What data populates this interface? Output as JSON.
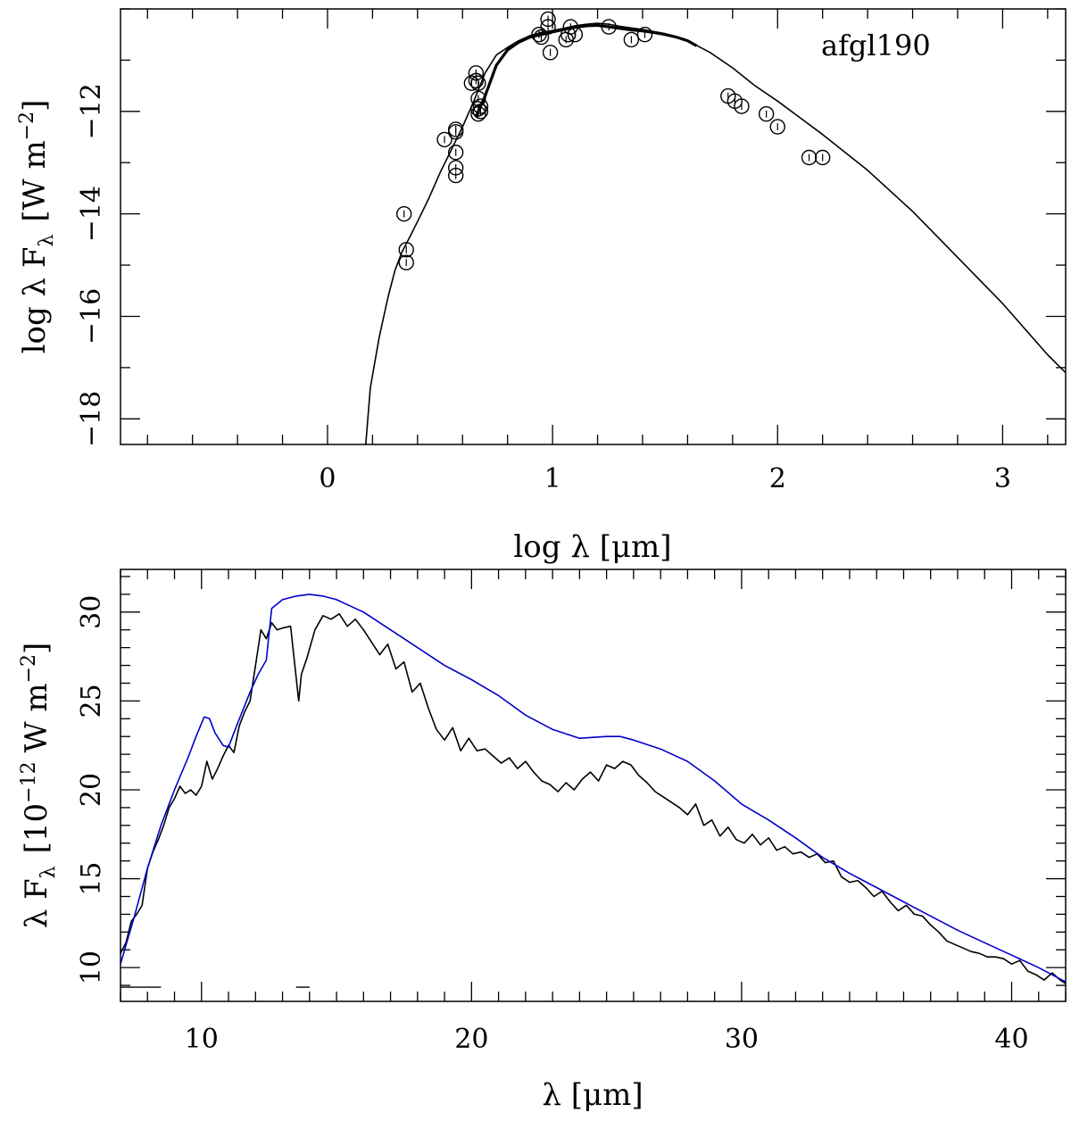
{
  "chart_data": [
    {
      "type": "scatter",
      "panel": "top",
      "title": "",
      "annotation": "afgl190",
      "xlabel": "log λ [μm]",
      "ylabel": "log λ F",
      "ylabel_sub": "λ",
      "ylabel_units": "[W m",
      "ylabel_sup": "−2",
      "ylabel_close": "]",
      "xlim": [
        -0.92,
        3.28
      ],
      "ylim": [
        -18.5,
        -10.0
      ],
      "x_ticks": [
        {
          "value": 0,
          "label": "0"
        },
        {
          "value": 1,
          "label": "1"
        },
        {
          "value": 2,
          "label": "2"
        },
        {
          "value": 3,
          "label": "3"
        }
      ],
      "x_minor_step": 0.2,
      "y_ticks": [
        {
          "value": -12,
          "label": "−12"
        },
        {
          "value": -14,
          "label": "−14"
        },
        {
          "value": -16,
          "label": "−16"
        },
        {
          "value": -18,
          "label": "−18"
        }
      ],
      "y_minor_step": 1,
      "series": [
        {
          "name": "model",
          "kind": "line",
          "color": "#000000",
          "x": [
            0.17,
            0.19,
            0.21,
            0.23,
            0.25,
            0.27,
            0.3,
            0.33,
            0.36,
            0.4,
            0.45,
            0.5,
            0.55,
            0.6,
            0.65,
            0.7,
            0.75,
            0.8,
            0.85,
            0.9,
            0.95,
            1.0,
            1.05,
            1.1,
            1.15,
            1.2,
            1.25,
            1.3,
            1.4,
            1.5,
            1.6,
            1.7,
            1.8,
            1.9,
            2.0,
            2.2,
            2.4,
            2.6,
            2.8,
            3.0,
            3.2,
            3.28
          ],
          "y": [
            -18.5,
            -17.4,
            -16.9,
            -16.4,
            -16.0,
            -15.6,
            -15.1,
            -14.75,
            -14.5,
            -14.15,
            -13.7,
            -13.2,
            -12.75,
            -12.3,
            -11.8,
            -11.25,
            -10.9,
            -10.75,
            -10.62,
            -10.52,
            -10.46,
            -10.42,
            -10.38,
            -10.33,
            -10.3,
            -10.28,
            -10.3,
            -10.34,
            -10.4,
            -10.48,
            -10.62,
            -10.85,
            -11.15,
            -11.5,
            -11.8,
            -12.45,
            -13.15,
            -13.95,
            -14.85,
            -15.75,
            -16.75,
            -17.1
          ]
        },
        {
          "name": "observed spectrum",
          "kind": "line-thick",
          "color": "#000000",
          "x": [
            0.66,
            0.7,
            0.75,
            0.8,
            0.85,
            0.9,
            0.95,
            1.0,
            1.05,
            1.1,
            1.15,
            1.2,
            1.25,
            1.3,
            1.35,
            1.4,
            1.45,
            1.5,
            1.55,
            1.6,
            1.64
          ],
          "y": [
            -12.1,
            -11.7,
            -11.1,
            -10.8,
            -10.65,
            -10.55,
            -10.5,
            -10.45,
            -10.4,
            -10.36,
            -10.33,
            -10.32,
            -10.35,
            -10.38,
            -10.41,
            -10.43,
            -10.46,
            -10.5,
            -10.55,
            -10.62,
            -10.72
          ]
        },
        {
          "name": "photometry",
          "kind": "markers",
          "color": "#000000",
          "x": [
            0.34,
            0.35,
            0.35,
            0.52,
            0.57,
            0.57,
            0.57,
            0.57,
            0.57,
            0.64,
            0.66,
            0.66,
            0.67,
            0.67,
            0.68,
            0.67,
            0.68,
            0.67,
            0.94,
            0.95,
            0.98,
            0.98,
            0.99,
            1.07,
            1.06,
            1.08,
            1.1,
            1.25,
            1.35,
            1.41,
            1.78,
            1.81,
            1.84,
            1.95,
            2.0,
            2.14,
            2.2
          ],
          "y": [
            -14.0,
            -14.7,
            -14.95,
            -12.55,
            -12.35,
            -12.4,
            -12.8,
            -13.1,
            -13.25,
            -11.45,
            -11.4,
            -11.25,
            -11.45,
            -11.75,
            -12.0,
            -12.05,
            -11.9,
            -11.95,
            -10.5,
            -10.55,
            -10.2,
            -10.35,
            -10.85,
            -10.5,
            -10.6,
            -10.35,
            -10.5,
            -10.35,
            -10.6,
            -10.5,
            -11.7,
            -11.8,
            -11.9,
            -12.05,
            -12.3,
            -12.9,
            -12.9
          ]
        }
      ]
    },
    {
      "type": "line",
      "panel": "bottom",
      "title": "",
      "xlabel": "λ [μm]",
      "ylabel": "λ F",
      "ylabel_sub": "λ",
      "ylabel_units": "[10",
      "ylabel_sup": "−12",
      "ylabel_rest": "W m",
      "ylabel_sup2": "−2",
      "ylabel_close": "]",
      "xlim": [
        7,
        42
      ],
      "ylim": [
        8.1,
        32.4
      ],
      "x_ticks": [
        {
          "value": 10,
          "label": "10"
        },
        {
          "value": 20,
          "label": "20"
        },
        {
          "value": 30,
          "label": "30"
        },
        {
          "value": 40,
          "label": "40"
        }
      ],
      "x_minor_step": 1,
      "y_ticks": [
        {
          "value": 10,
          "label": "10"
        },
        {
          "value": 15,
          "label": "15"
        },
        {
          "value": 20,
          "label": "20"
        },
        {
          "value": 25,
          "label": "25"
        },
        {
          "value": 30,
          "label": "30"
        }
      ],
      "y_minor_step": 1,
      "series": [
        {
          "name": "observed",
          "color": "#000000",
          "x": [
            7.0,
            7.2,
            7.4,
            7.6,
            7.8,
            8.0,
            8.2,
            8.4,
            8.6,
            8.8,
            9.0,
            9.2,
            9.4,
            9.6,
            9.8,
            10.0,
            10.2,
            10.4,
            10.6,
            10.8,
            11.0,
            11.2,
            11.4,
            11.6,
            11.8,
            12.0,
            12.2,
            12.4,
            12.6,
            12.8,
            13.0,
            13.3,
            13.6,
            13.7,
            13.9,
            14.2,
            14.5,
            14.8,
            15.1,
            15.4,
            15.7,
            16.0,
            16.3,
            16.6,
            16.9,
            17.2,
            17.5,
            17.8,
            18.1,
            18.4,
            18.7,
            19.0,
            19.3,
            19.6,
            19.9,
            20.2,
            20.5,
            20.8,
            21.1,
            21.4,
            21.7,
            22.0,
            22.3,
            22.6,
            22.9,
            23.2,
            23.5,
            23.8,
            24.1,
            24.4,
            24.7,
            25.0,
            25.3,
            25.6,
            25.9,
            26.2,
            26.5,
            26.8,
            27.1,
            27.4,
            27.7,
            28.0,
            28.3,
            28.6,
            28.9,
            29.2,
            29.5,
            29.8,
            30.1,
            30.4,
            30.7,
            31.0,
            31.3,
            31.6,
            31.9,
            32.2,
            32.5,
            32.8,
            33.1,
            33.4,
            33.7,
            34.0,
            34.3,
            34.6,
            34.9,
            35.2,
            35.5,
            35.8,
            36.1,
            36.4,
            36.7,
            37.0,
            37.3,
            37.6,
            37.9,
            38.2,
            38.5,
            38.8,
            39.1,
            39.4,
            39.7,
            40.0,
            40.3,
            40.6,
            40.9,
            41.2,
            41.5,
            41.8,
            42.0
          ],
          "y": [
            10.8,
            11.4,
            12.6,
            13.0,
            13.5,
            15.6,
            16.5,
            17.2,
            18.0,
            19.0,
            19.5,
            20.2,
            19.8,
            20.0,
            19.7,
            20.2,
            21.6,
            20.6,
            21.2,
            21.9,
            22.5,
            22.1,
            23.6,
            24.4,
            25.0,
            27.0,
            29.0,
            28.5,
            29.4,
            29.0,
            29.1,
            29.2,
            25.0,
            26.5,
            27.4,
            29.0,
            29.8,
            29.6,
            29.9,
            29.2,
            29.6,
            29.0,
            28.3,
            27.6,
            28.2,
            26.8,
            27.2,
            25.5,
            26.0,
            24.6,
            23.4,
            22.8,
            23.5,
            22.2,
            22.9,
            22.2,
            22.3,
            21.9,
            21.5,
            21.8,
            21.2,
            21.6,
            21.0,
            20.5,
            20.3,
            19.9,
            20.4,
            20.0,
            20.6,
            21.0,
            20.5,
            21.4,
            21.2,
            21.6,
            21.4,
            20.8,
            20.4,
            19.9,
            19.6,
            19.3,
            19.0,
            18.6,
            19.2,
            18.0,
            18.3,
            17.4,
            17.9,
            17.2,
            17.0,
            17.5,
            16.9,
            17.3,
            16.6,
            16.8,
            16.4,
            16.5,
            16.2,
            16.4,
            15.9,
            16.0,
            15.1,
            14.8,
            14.9,
            14.5,
            14.0,
            14.3,
            13.7,
            13.2,
            13.5,
            13.0,
            12.9,
            12.4,
            12.0,
            11.5,
            11.3,
            11.1,
            10.9,
            10.8,
            10.6,
            10.6,
            10.5,
            10.2,
            10.4,
            9.8,
            9.6,
            9.3,
            9.7,
            9.3,
            9.1
          ]
        },
        {
          "name": "model",
          "color": "#0000cc",
          "x": [
            7.0,
            7.5,
            8.0,
            8.5,
            9.0,
            9.5,
            9.8,
            10.1,
            10.3,
            10.5,
            10.8,
            11.0,
            11.3,
            11.8,
            12.1,
            12.4,
            12.6,
            13.0,
            13.5,
            14.0,
            14.5,
            15.0,
            16.0,
            17.0,
            18.0,
            19.0,
            20.0,
            21.0,
            22.0,
            23.0,
            24.0,
            25.0,
            25.5,
            26.0,
            27.0,
            28.0,
            29.0,
            30.0,
            31.0,
            32.0,
            33.0,
            34.0,
            35.0,
            36.0,
            37.0,
            38.0,
            39.0,
            40.0,
            41.0,
            42.0
          ],
          "y": [
            10.2,
            12.8,
            15.6,
            18.0,
            20.0,
            21.8,
            23.0,
            24.1,
            24.0,
            23.2,
            22.5,
            22.4,
            23.6,
            25.5,
            26.5,
            27.3,
            30.2,
            30.7,
            30.9,
            31.0,
            30.9,
            30.7,
            30.0,
            29.0,
            28.0,
            27.0,
            26.2,
            25.3,
            24.2,
            23.4,
            22.9,
            23.0,
            23.0,
            22.8,
            22.3,
            21.6,
            20.5,
            19.2,
            18.3,
            17.3,
            16.2,
            15.3,
            14.5,
            13.7,
            12.9,
            12.1,
            11.4,
            10.7,
            10.0,
            9.2
          ]
        }
      ],
      "reference_dashes": [
        {
          "x1": 7.0,
          "x2": 8.5,
          "y": 8.9
        },
        {
          "x1": 13.5,
          "x2": 14.0,
          "y": 8.9
        }
      ]
    }
  ]
}
